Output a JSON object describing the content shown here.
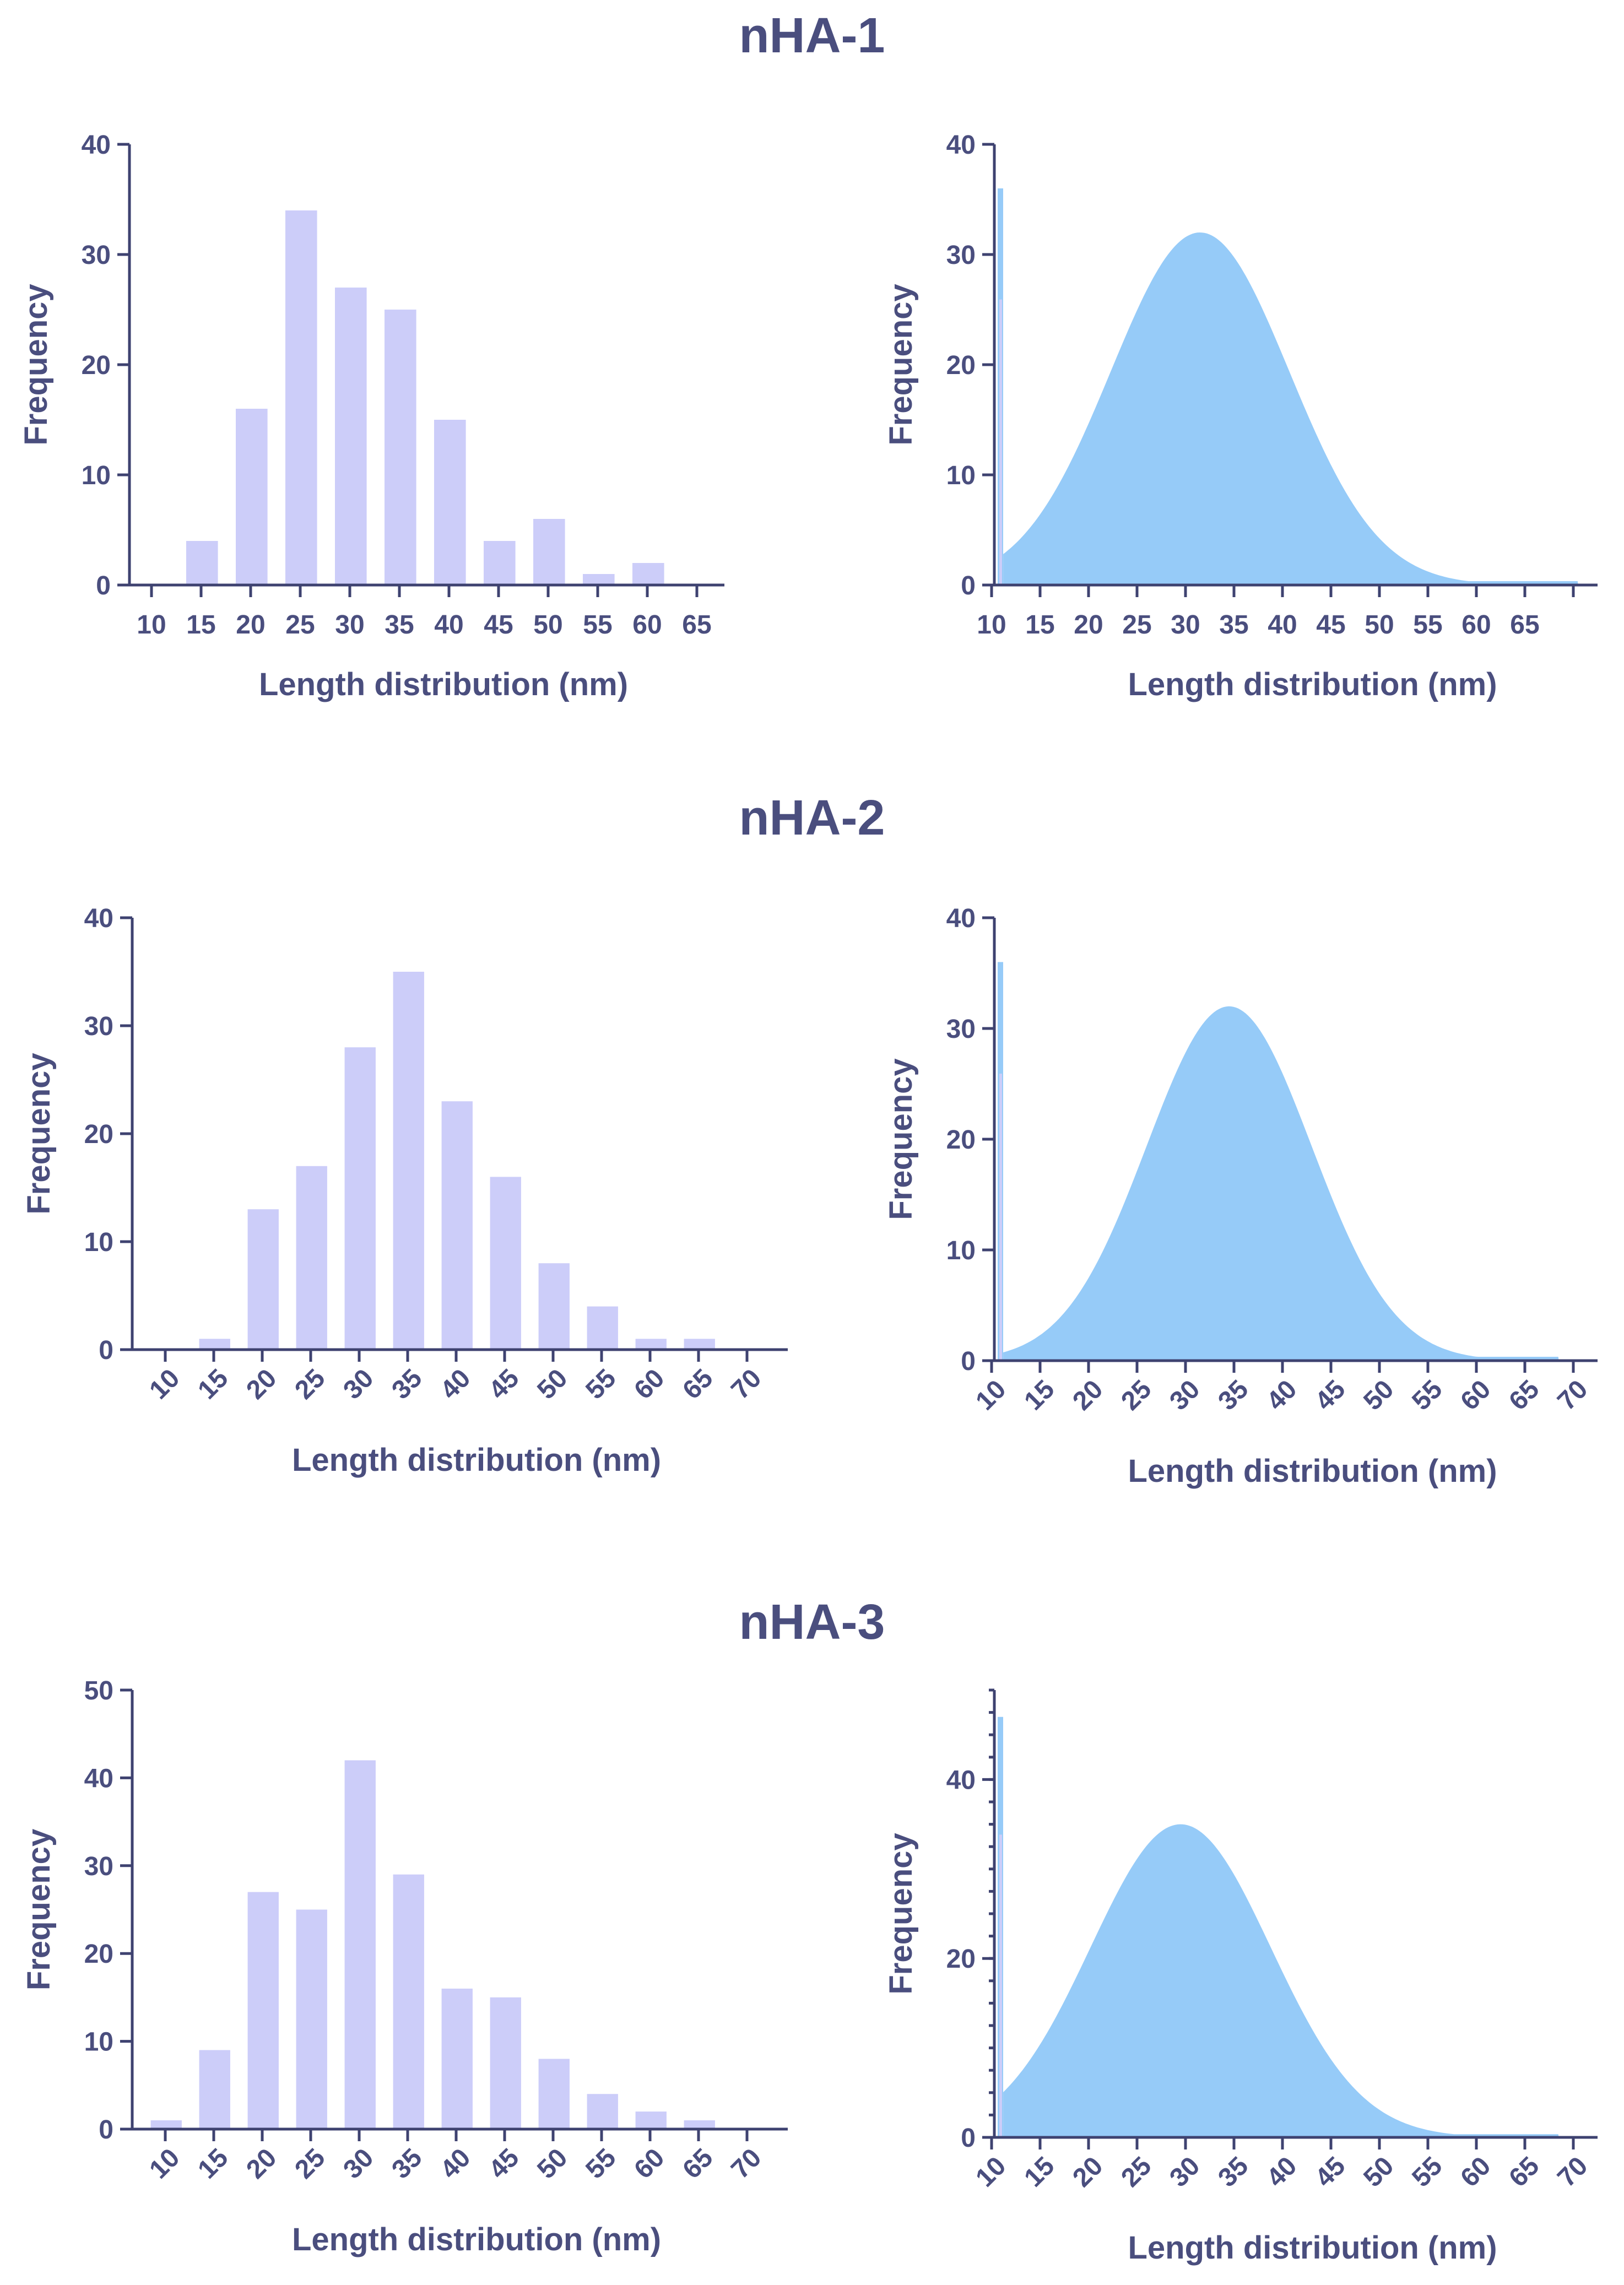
{
  "colors": {
    "bar": "#cccdf9",
    "curve": "#96cbf8",
    "axis": "#3e4270",
    "text": "#4a4e7e"
  },
  "panels": [
    {
      "title": "nHA-1",
      "histogram": {
        "type": "bar",
        "xlabel": "Length distribution (nm)",
        "ylabel": "Frequency",
        "ylim": [
          0,
          40
        ],
        "yticks": [
          "0",
          "10",
          "20",
          "30",
          "40"
        ],
        "xticks": [
          "10",
          "15",
          "20",
          "25",
          "30",
          "35",
          "40",
          "45",
          "50",
          "55",
          "60",
          "65"
        ],
        "rotated": false,
        "categories": [
          10,
          15,
          20,
          25,
          30,
          35,
          40,
          45,
          50,
          55,
          60,
          65
        ],
        "values": [
          0,
          4,
          16,
          34,
          27,
          25,
          15,
          4,
          6,
          1,
          2,
          0
        ]
      },
      "fit": {
        "type": "area",
        "xlabel": "Length distribution (nm)",
        "ylabel": "Frequency",
        "ylim": [
          0,
          40
        ],
        "yticks": [
          "0",
          "10",
          "20",
          "30",
          "40"
        ],
        "xticks": [
          "10",
          "15",
          "20",
          "25",
          "30",
          "35",
          "40",
          "45",
          "50",
          "55",
          "60",
          "65"
        ],
        "xmax": 73,
        "rotated": false,
        "mean": 31.5,
        "sd": 9.2,
        "peak": 32,
        "spike": 36
      }
    },
    {
      "title": "nHA-2",
      "histogram": {
        "type": "bar",
        "xlabel": "Length distribution (nm)",
        "ylabel": "Frequency",
        "ylim": [
          0,
          40
        ],
        "yticks": [
          "0",
          "10",
          "20",
          "30",
          "40"
        ],
        "xticks": [
          "10",
          "15",
          "20",
          "25",
          "30",
          "35",
          "40",
          "45",
          "50",
          "55",
          "60",
          "65",
          "70"
        ],
        "rotated": true,
        "categories": [
          10,
          15,
          20,
          25,
          30,
          35,
          40,
          45,
          50,
          55,
          60,
          65,
          70
        ],
        "values": [
          0,
          1,
          13,
          17,
          28,
          35,
          23,
          16,
          8,
          4,
          1,
          1,
          0
        ]
      },
      "fit": {
        "type": "area",
        "xlabel": "Length distribution (nm)",
        "ylabel": "Frequency",
        "ylim": [
          0,
          40
        ],
        "yticks": [
          "0",
          "10",
          "20",
          "30",
          "40"
        ],
        "xticks": [
          "10",
          "15",
          "20",
          "25",
          "30",
          "35",
          "40",
          "45",
          "50",
          "55",
          "60",
          "65",
          "70"
        ],
        "xmax": 71,
        "rotated": true,
        "mean": 34.5,
        "sd": 8.5,
        "peak": 32,
        "spike": 36
      }
    },
    {
      "title": "nHA-3",
      "histogram": {
        "type": "bar",
        "xlabel": "Length distribution (nm)",
        "ylabel": "Frequency",
        "ylim": [
          0,
          50
        ],
        "yticks": [
          "0",
          "10",
          "20",
          "30",
          "40",
          "50"
        ],
        "xticks": [
          "10",
          "15",
          "20",
          "25",
          "30",
          "35",
          "40",
          "45",
          "50",
          "55",
          "60",
          "65",
          "70"
        ],
        "rotated": true,
        "categories": [
          10,
          15,
          20,
          25,
          30,
          35,
          40,
          45,
          50,
          55,
          60,
          65,
          70
        ],
        "values": [
          1,
          9,
          27,
          25,
          42,
          29,
          16,
          15,
          8,
          4,
          2,
          1,
          0
        ]
      },
      "fit": {
        "type": "area",
        "xlabel": "Length distribution (nm)",
        "ylabel": "Frequency",
        "ylim": [
          0,
          50
        ],
        "yticks": [
          "0",
          "20",
          "40"
        ],
        "xticks": [
          "10",
          "15",
          "20",
          "25",
          "30",
          "35",
          "40",
          "45",
          "50",
          "55",
          "60",
          "65",
          "70"
        ],
        "xmax": 71,
        "rotated": true,
        "mean": 29.5,
        "sd": 9.3,
        "peak": 35,
        "spike": 47
      }
    }
  ]
}
